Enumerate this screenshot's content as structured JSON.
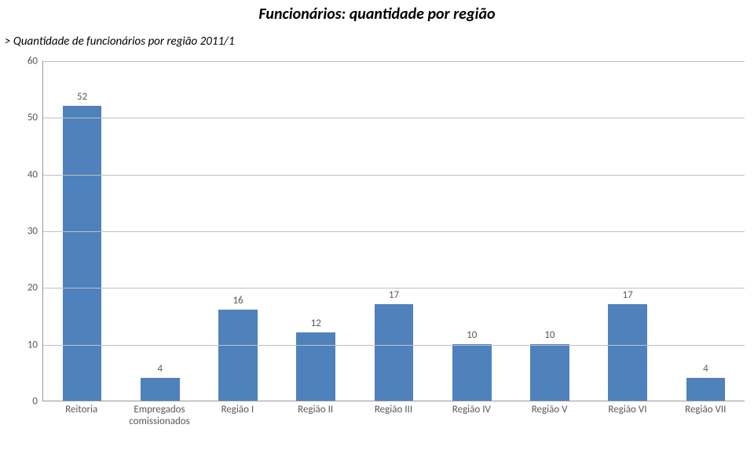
{
  "title": {
    "text": "Funcionários: quantidade por região",
    "fontsize": 20
  },
  "subtitle": {
    "text": "> Quantidade de funcionários por região 2011/1",
    "fontsize": 15
  },
  "chart": {
    "type": "bar",
    "categories": [
      "Reitoria",
      "Empregados\ncomissionados",
      "Região I",
      "Região II",
      "Região III",
      "Região IV",
      "Região V",
      "Região VI",
      "Região VII"
    ],
    "values": [
      52,
      4,
      16,
      12,
      17,
      10,
      10,
      17,
      4
    ],
    "bar_color": "#4f81bd",
    "bar_width": 0.5,
    "ylim": [
      0,
      60
    ],
    "ytick_step": 10,
    "background_color": "#ffffff",
    "grid_color": "#bfbfbf",
    "axis_color": "#999999",
    "tick_fontsize": 13,
    "value_fontsize": 13,
    "xlabel_fontsize": 13,
    "text_color": "#595959"
  }
}
